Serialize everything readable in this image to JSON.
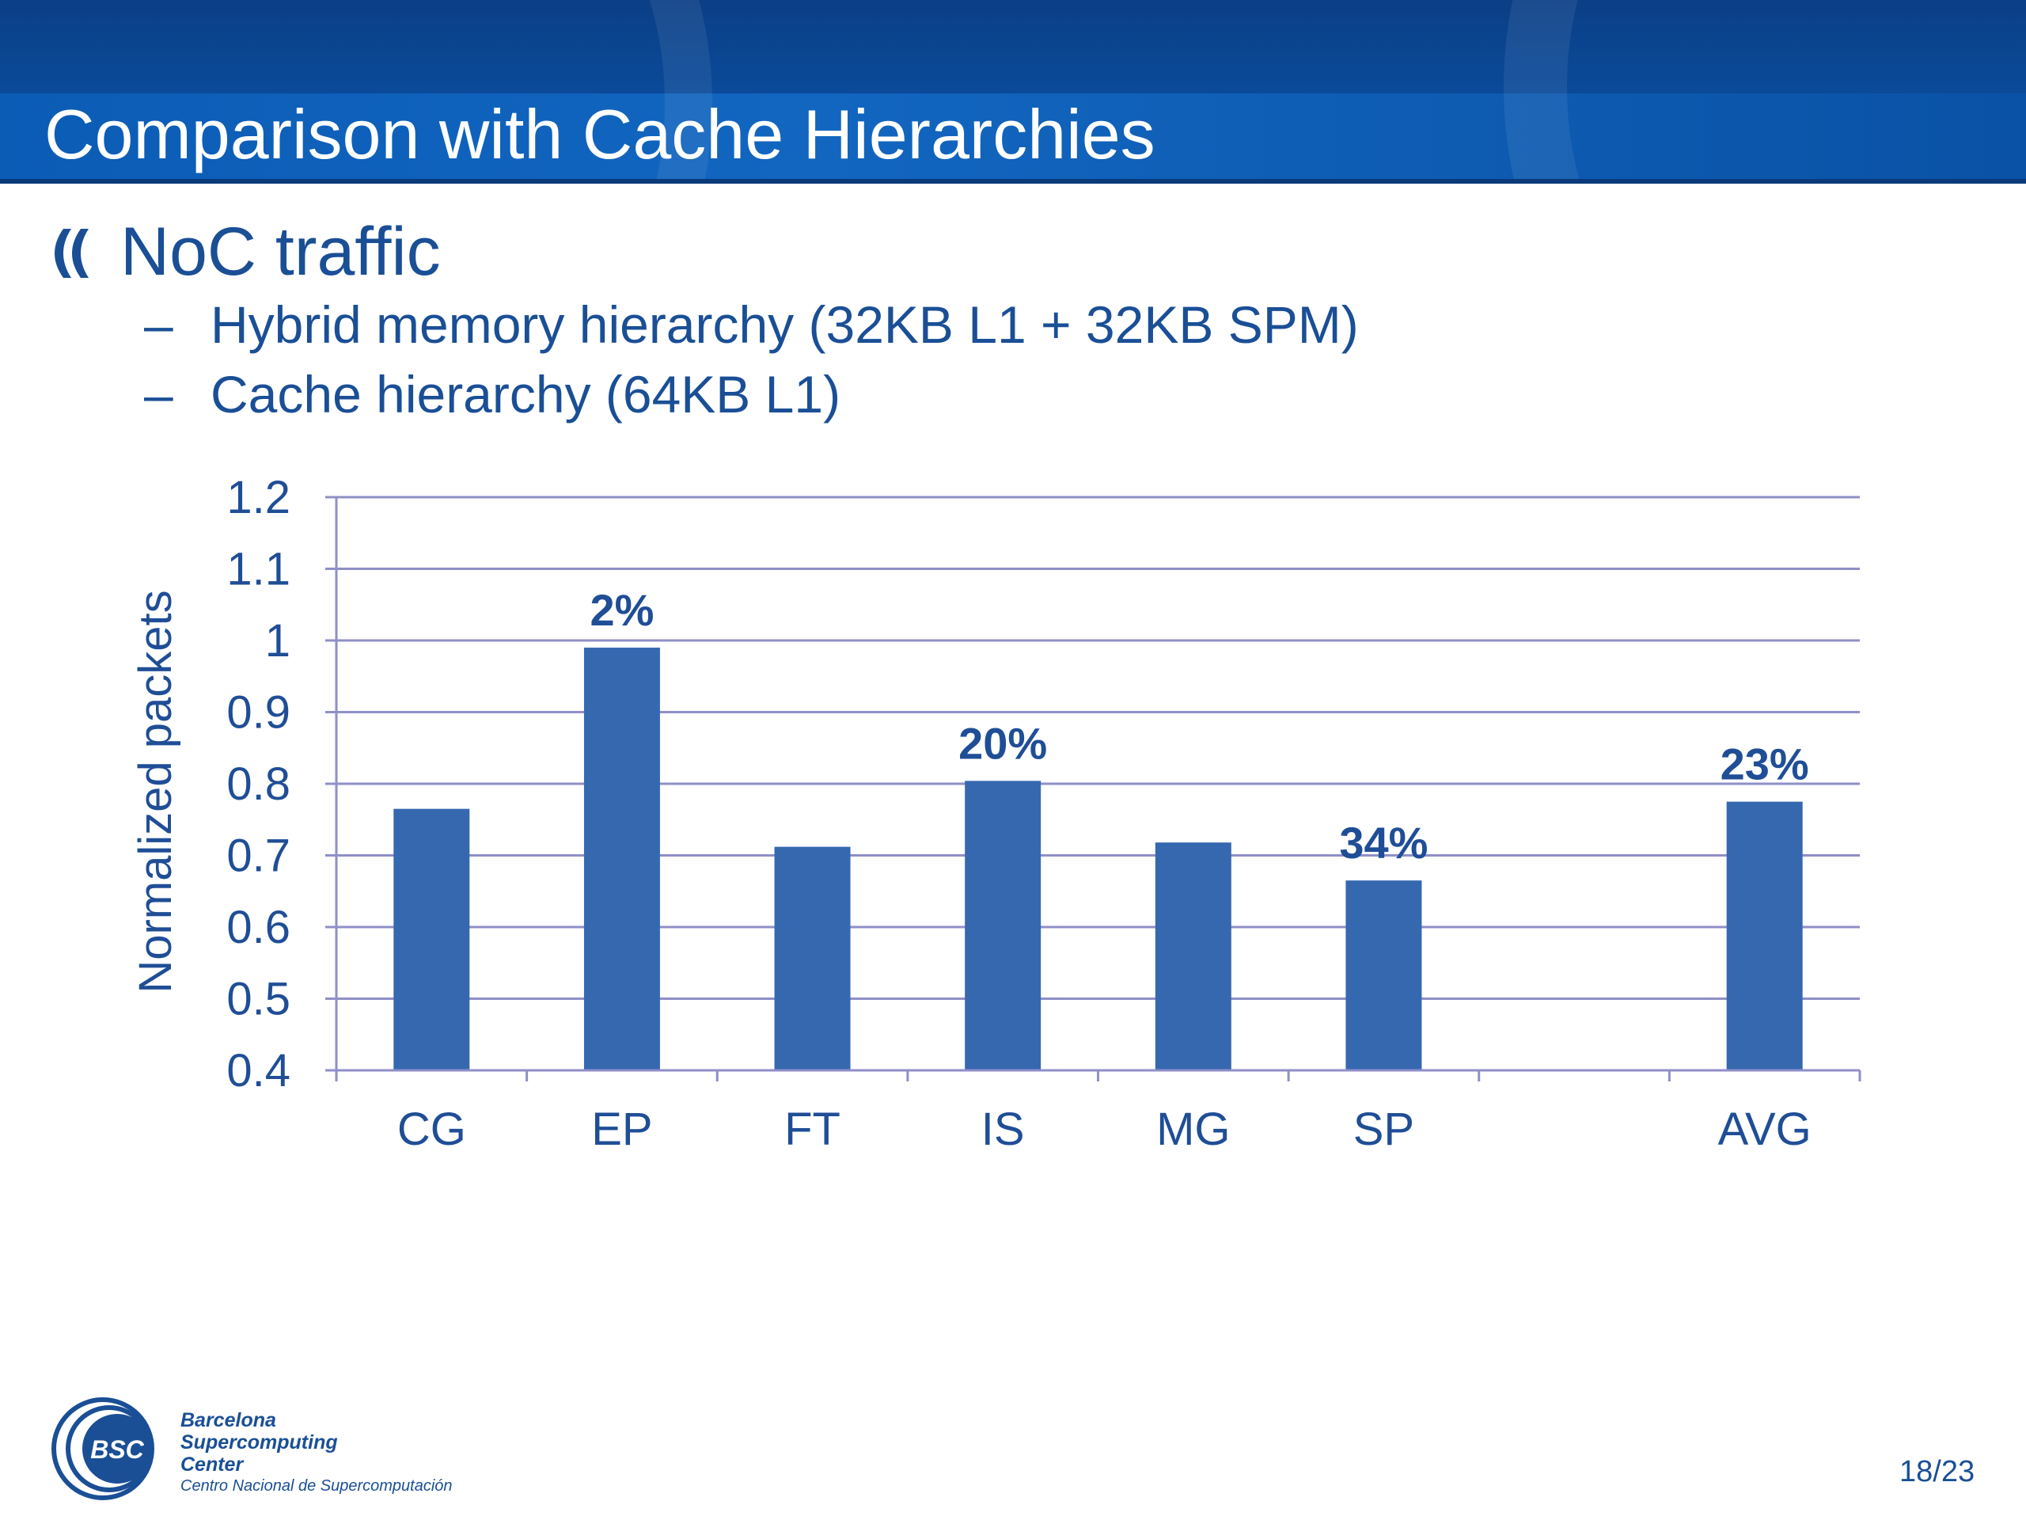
{
  "slide": {
    "title": "Comparison with Cache Hierarchies",
    "bullet": "NoC traffic",
    "sub_bullets": [
      "Hybrid memory hierarchy (32KB L1 + 32KB SPM)",
      "Cache hierarchy (64KB L1)"
    ],
    "dash": "–",
    "page_number": "18/23"
  },
  "footer": {
    "logo_text": "BSC",
    "org_lines": [
      "Barcelona",
      "Supercomputing",
      "Center"
    ],
    "org_subtitle": "Centro Nacional de Supercomputación"
  },
  "colors": {
    "header": "#0b4f9e",
    "bar": "#3668b0",
    "grid": "#8f8fc8",
    "text": "#1f4e96"
  },
  "chart_data": {
    "type": "bar",
    "title": "",
    "xlabel": "",
    "ylabel": "Normalized packets",
    "categories": [
      "CG",
      "EP",
      "FT",
      "IS",
      "MG",
      "SP",
      "",
      "AVG"
    ],
    "values": [
      0.765,
      0.99,
      0.712,
      0.804,
      0.718,
      0.665,
      null,
      0.775
    ],
    "data_labels": [
      "",
      "2%",
      "",
      "20%",
      "",
      "34%",
      "",
      "23%"
    ],
    "ylim": [
      0.4,
      1.2
    ],
    "yticks": [
      "0.4",
      "0.5",
      "0.6",
      "0.7",
      "0.8",
      "0.9",
      "1",
      "1.1",
      "1.2"
    ],
    "grid": true
  }
}
